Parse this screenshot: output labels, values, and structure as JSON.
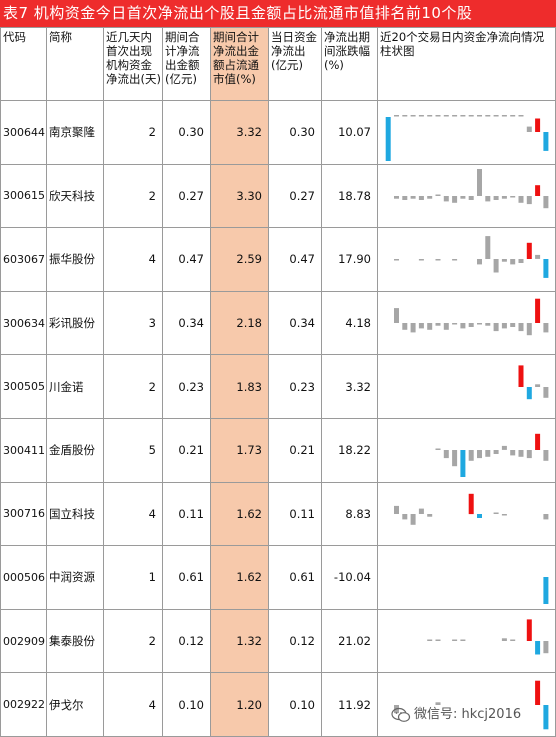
{
  "title": "表7 机构资金今日首次净流出个股且金额占比流通市值排名前10个股",
  "headers": {
    "code": "代码",
    "name": "简称",
    "days": "近几天内首次出现机构资金净流出(天)",
    "amount": "期间合计净流出金额(亿元)",
    "ratio": "期间合计净流出金额占流通市值(%)",
    "today": "当日资金净流出(亿元)",
    "change": "净流出期间涨跌幅(%)",
    "chart": "近20个交易日内资金净流向情况柱状图"
  },
  "colors": {
    "title_bg": "#ee2c2c",
    "highlight": "#f7c9ab",
    "bar_gray": "#a6a6a6",
    "bar_red": "#ee1111",
    "bar_blue": "#1fa8e0"
  },
  "rows": [
    {
      "code": "300644",
      "name": "南京聚隆",
      "days": "2",
      "amount": "0.30",
      "ratio": "3.32",
      "today": "0.30",
      "change": "10.07",
      "bars": [
        0,
        0,
        0,
        0,
        0,
        0,
        0,
        0,
        0,
        0,
        0,
        0,
        0,
        0,
        0,
        0,
        0,
        0.2,
        0.5,
        -0.7
      ]
    },
    {
      "code": "300615",
      "name": "欣天科技",
      "days": "2",
      "amount": "0.27",
      "ratio": "3.30",
      "today": "0.27",
      "change": "18.78",
      "bars": [
        0,
        -0.1,
        -0.15,
        -0.1,
        -0.15,
        -0.1,
        0.05,
        -0.2,
        -0.25,
        -0.1,
        -0.15,
        1.0,
        -0.2,
        -0.15,
        -0.1,
        -0.05,
        -0.25,
        -0.3,
        0.4,
        -0.45
      ]
    },
    {
      "code": "603067",
      "name": "振华股份",
      "days": "4",
      "amount": "0.47",
      "ratio": "2.59",
      "today": "0.47",
      "change": "17.90",
      "bars": [
        0,
        -0.05,
        0,
        0,
        -0.05,
        0,
        -0.05,
        0,
        -0.05,
        0,
        0,
        -0.2,
        0.85,
        -0.5,
        -0.1,
        -0.2,
        -0.15,
        0.6,
        0.15,
        -0.7
      ]
    },
    {
      "code": "300634",
      "name": "彩讯股份",
      "days": "3",
      "amount": "0.34",
      "ratio": "2.18",
      "today": "0.34",
      "change": "4.18",
      "bars": [
        0,
        0.55,
        -0.25,
        -0.35,
        -0.2,
        -0.25,
        -0.1,
        -0.25,
        -0.05,
        -0.2,
        -0.15,
        -0.05,
        -0.1,
        -0.3,
        -0.2,
        -0.15,
        -0.3,
        -0.45,
        0.9,
        -0.35
      ]
    },
    {
      "code": "300505",
      "name": "川金诺",
      "days": "2",
      "amount": "0.23",
      "ratio": "1.83",
      "today": "0.23",
      "change": "3.32",
      "bars": [
        0,
        0,
        0,
        0,
        0,
        0,
        0,
        0,
        0,
        0,
        0,
        0,
        0,
        0,
        0,
        0,
        0.8,
        -0.45,
        0.1,
        -0.4
      ]
    },
    {
      "code": "300411",
      "name": "金盾股份",
      "days": "5",
      "amount": "0.21",
      "ratio": "1.73",
      "today": "0.21",
      "change": "18.22",
      "bars": [
        0,
        0,
        0,
        0,
        0,
        0,
        0.05,
        -0.3,
        -0.6,
        -1.0,
        -0.4,
        -0.3,
        -0.25,
        -0.15,
        0.15,
        -0.2,
        -0.25,
        -0.3,
        0.6,
        -0.4
      ]
    },
    {
      "code": "300716",
      "name": "国立科技",
      "days": "4",
      "amount": "0.11",
      "ratio": "1.62",
      "today": "0.11",
      "change": "8.83",
      "bars": [
        0,
        0.3,
        -0.2,
        -0.4,
        0.2,
        -0.1,
        0,
        0,
        0,
        0,
        0.75,
        -0.15,
        0,
        0.05,
        -0.05,
        0,
        0,
        0,
        0,
        -0.2
      ]
    },
    {
      "code": "000506",
      "name": "中润资源",
      "days": "1",
      "amount": "0.61",
      "ratio": "1.62",
      "today": "0.61",
      "change": "-10.04",
      "bars": [
        0,
        0,
        0,
        0,
        0,
        0,
        0,
        0,
        0,
        0,
        0,
        0,
        0,
        0,
        0,
        0,
        0,
        0,
        0,
        -1.0
      ]
    },
    {
      "code": "002909",
      "name": "集泰股份",
      "days": "2",
      "amount": "0.12",
      "ratio": "1.32",
      "today": "0.12",
      "change": "21.02",
      "bars": [
        0,
        0,
        0,
        0,
        0,
        0.05,
        0.05,
        0,
        0.05,
        0.05,
        0,
        0,
        0,
        0,
        0.1,
        0.05,
        0,
        0.8,
        -0.5,
        -0.45
      ]
    },
    {
      "code": "002922",
      "name": "伊戈尔",
      "days": "4",
      "amount": "0.10",
      "ratio": "1.20",
      "today": "0.10",
      "change": "11.92",
      "bars": [
        0,
        -0.3,
        0,
        0,
        0,
        0,
        0.1,
        0,
        0,
        0,
        0,
        0,
        0,
        0,
        0,
        0,
        0,
        0,
        0.9,
        -0.9
      ]
    }
  ],
  "watermark": "微信号: hkcj2016"
}
